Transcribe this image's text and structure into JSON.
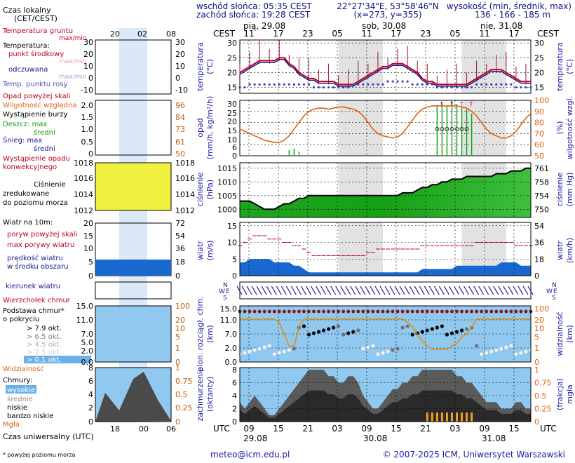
{
  "colors": {
    "title_blue": "#1a1aa8",
    "sun_text": "#101080",
    "temp_red": "#c00020",
    "orange": "#e06010",
    "navy": "#1a1a90",
    "green": "#10a010",
    "yellow": "#f0e030",
    "light_blue": "#90c8f0",
    "night_grey": "#e4e4e4"
  },
  "header": {
    "sunrise": "wschód słońca: 05:35 CEST",
    "sunset": "zachód słońca: 19:28 CEST",
    "coords": "22°27'34\"E, 53°58'46\"N",
    "grid": "(x=273, y=355)",
    "altitude_title": "wysokość (min, średnik, max)",
    "altitude_values": "136 - 166 - 185 m"
  },
  "top_axis": {
    "cest_label": "CEST",
    "days": [
      "pią, 29.08",
      "sob, 30.08",
      "nie, 31.08"
    ],
    "hours": [
      "11",
      "17",
      "23",
      "05",
      "11",
      "17",
      "23",
      "05",
      "11",
      "17"
    ]
  },
  "bottom_axis": {
    "utc_label": "UTC",
    "hours": [
      "09",
      "15",
      "21",
      "03",
      "09",
      "15",
      "21",
      "03",
      "09",
      "15"
    ],
    "dates": [
      "29.08",
      "30.08",
      "31.08"
    ]
  },
  "legend": {
    "time_local": "Czas lokalny\n(CET/CEST)",
    "time_local_hours": [
      "20",
      "02",
      "08"
    ],
    "time_utc_hours": [
      "18",
      "00",
      "06"
    ],
    "temp_ground": "Temperatura gruntu",
    "temp_ground_sub": "max/min",
    "temp_title": "Temperatura:",
    "temp_mid": "punkt środkowy",
    "temp_mid_sub": "max/min",
    "temp_feel": "odczuwana",
    "temp_feel_sub": "max/min",
    "temp_dew": "Temp. punktu rosy",
    "precip_above": "Opad powyżej skali",
    "humidity": "Wilgotność względna",
    "storm": "Wystąpienie burzy",
    "rain": "Deszcz: max",
    "rain_mean": "średni",
    "snow": "Śnieg: max",
    "snow_mean": "średni",
    "precip_occurrence": "Wystąpienie opadu\nkonwekcyjnego",
    "pressure": "Ciśnienie\nzredukowane\ndo poziomu morza",
    "wind_title": "Wiatr na 10m:",
    "gust_above": "poryw powyżej skali",
    "gust_max": "max porywy wiatru",
    "wind_mean": "prędkość wiatru\nw środku obszaru",
    "wind_dir": "kierunek wiatru",
    "wind_chill": "Wierzchołek chmur",
    "cloud_base": "Podstawa chmur*\no pokryciu",
    "cloud_levels": [
      "> 7.9 okt.",
      "> 6.5 okt.",
      "> 4.5 okt.",
      "> 2.5 okt.",
      "> 0.1 okt."
    ],
    "visibility": "Widzialność",
    "clouds": "Chmury:",
    "cloud_high": "wysokie",
    "cloud_mid": "średnie",
    "cloud_low": "niskie",
    "cloud_vlow": "bardzo niskie",
    "fog": "Mgła",
    "utc_title": "Czas uniwersalny (UTC)",
    "footnote": "* powyżej poziomu morza"
  },
  "legend_ticks": {
    "temp_left": [
      "30",
      "20",
      "10",
      "0",
      "-10"
    ],
    "temp_right": [
      "30",
      "20",
      "10",
      "0",
      "-10"
    ],
    "precip_left": [
      "2.0",
      "1.5",
      "1.0",
      "0.5",
      "0"
    ],
    "precip_right": [
      "96",
      "84",
      "73",
      "61",
      "50"
    ],
    "pressure_left": [
      "1018",
      "1016",
      "1014",
      "1012"
    ],
    "pressure_right": [
      "1018",
      "1016",
      "1014",
      "1012"
    ],
    "wind_left": [
      "20",
      "15",
      "10",
      "5",
      "0"
    ],
    "wind_right": [
      "72",
      "54",
      "36",
      "18",
      "0"
    ],
    "cloud_left": [
      "15.0",
      "11.0",
      "7.0",
      "5.0",
      "2.0",
      "0.0"
    ],
    "cloud_right": [
      "100",
      "20",
      "10",
      "5",
      "1",
      "0"
    ],
    "cover_left": [
      "8",
      "6",
      "4",
      "2",
      "0"
    ],
    "cover_right": [
      "1",
      "0.75",
      "0.5",
      "0.25",
      "0"
    ]
  },
  "panels": {
    "temperature": {
      "label_left": "temperatura\n(°C)",
      "label_right": "temperatura\n(°C)",
      "ticks_left": [
        "30",
        "25",
        "20",
        "15"
      ],
      "ticks_right": [
        "30",
        "25",
        "20",
        "15"
      ]
    },
    "precip": {
      "label_left": "opad\n(mm/h, kg/m²/h)",
      "label_right": "(%)\nwilgotność wzgl.",
      "ticks_left": [
        "30",
        "25",
        "20",
        "15",
        "10",
        "6",
        "0"
      ],
      "ticks_right": [
        "100",
        "90",
        "80",
        "70",
        "60",
        "50"
      ]
    },
    "pressure": {
      "label_left": "ciśnienie\n(hPa)",
      "label_right": "ciśnienie\n(mm Hg)",
      "ticks_left": [
        "1015",
        "1010",
        "1005",
        "1000"
      ],
      "ticks_right": [
        "761",
        "758",
        "754",
        "750"
      ]
    },
    "wind": {
      "label_left": "wiatr\n(m/s)",
      "label_right": "wiatr\n(km/h)",
      "ticks_left": [
        "15",
        "10",
        "5",
        "0"
      ],
      "ticks_right": [
        "54",
        "36",
        "18",
        "0"
      ]
    },
    "direction": {
      "compass": [
        "N",
        "W",
        "E",
        "S"
      ]
    },
    "clouds": {
      "label_left": "pion. rozciągł. chm.\n(km)",
      "label_right": "widzialność\n(km)",
      "ticks_left": [
        "15.0",
        "11.0",
        "7.0",
        "2.0",
        "0.0"
      ],
      "ticks_right": [
        "100",
        "20",
        "10",
        "5",
        "1",
        "0"
      ]
    },
    "cover": {
      "label_left": "zachmurzenie\n(oktanty)",
      "label_right": "(frakcja)\nmgła",
      "ticks_left": [
        "8",
        "6",
        "4",
        "2",
        "0"
      ],
      "ticks_right": [
        "1",
        "0.75",
        "0.5",
        "0.25",
        "0"
      ]
    }
  },
  "footer": {
    "email": "meteo@icm.edu.pl",
    "copyright": "© 2007-2025 ICM, Uniwersytet Warszawski"
  },
  "chart_data": {
    "type": "line",
    "hours_count": 60,
    "temperature_mid": [
      20,
      21,
      22,
      23,
      24,
      24,
      24,
      24,
      25,
      25,
      23,
      22,
      20,
      19,
      18,
      18,
      17,
      17,
      17,
      17,
      16,
      16,
      16,
      16,
      17,
      18,
      19,
      20,
      21,
      22,
      22,
      23,
      23,
      23,
      22,
      21,
      20,
      18,
      17,
      17,
      16,
      16,
      16,
      16,
      16,
      16,
      16,
      17,
      18,
      19,
      20,
      21,
      21,
      21,
      20,
      19,
      18,
      17,
      17,
      17
    ],
    "dew_point": [
      15,
      15,
      16,
      16,
      16,
      16,
      16,
      16,
      16,
      16,
      16,
      16,
      16,
      16,
      16,
      15,
      15,
      15,
      15,
      15,
      15,
      15,
      15,
      16,
      16,
      16,
      16,
      16,
      16,
      16,
      17,
      17,
      17,
      17,
      17,
      16,
      16,
      16,
      16,
      16,
      15,
      15,
      15,
      15,
      15,
      15,
      15,
      15,
      16,
      16,
      16,
      16,
      16,
      16,
      16,
      16,
      15,
      15,
      15,
      15
    ],
    "humidity": [
      74,
      72,
      70,
      68,
      66,
      64,
      63,
      62,
      62,
      64,
      68,
      74,
      80,
      86,
      90,
      92,
      93,
      93,
      92,
      93,
      94,
      94,
      93,
      92,
      90,
      86,
      80,
      74,
      70,
      68,
      67,
      66,
      67,
      70,
      76,
      82,
      88,
      92,
      94,
      95,
      95,
      95,
      95,
      95,
      95,
      94,
      93,
      90,
      86,
      80,
      74,
      70,
      68,
      66,
      66,
      68,
      72,
      78,
      84,
      88
    ],
    "pressure": [
      1003,
      1003,
      1003,
      1002,
      1001,
      1000,
      1000,
      1000,
      1001,
      1002,
      1002,
      1003,
      1004,
      1004,
      1005,
      1005,
      1005,
      1005,
      1005,
      1005,
      1005,
      1005,
      1005,
      1005,
      1005,
      1005,
      1005,
      1005,
      1005,
      1005,
      1005,
      1005,
      1005,
      1006,
      1006,
      1006,
      1007,
      1008,
      1008,
      1009,
      1009,
      1010,
      1010,
      1011,
      1011,
      1011,
      1012,
      1012,
      1012,
      1012,
      1012,
      1012,
      1013,
      1013,
      1013,
      1014,
      1014,
      1014,
      1015,
      1015
    ],
    "wind_speed": [
      4,
      4,
      5,
      5,
      5,
      5,
      5,
      4,
      4,
      4,
      4,
      3,
      3,
      2,
      1,
      1,
      1,
      1,
      1,
      1,
      1,
      1,
      1,
      1,
      1,
      1,
      1,
      1,
      1,
      1,
      1,
      1,
      1,
      1,
      1,
      1,
      1,
      2,
      2,
      2,
      2,
      2,
      2,
      2,
      3,
      3,
      3,
      3,
      3,
      3,
      3,
      3,
      3,
      4,
      4,
      4,
      4,
      3,
      3,
      3
    ],
    "wind_gust": [
      9,
      10,
      11,
      12,
      12,
      12,
      11,
      11,
      11,
      10,
      10,
      9,
      9,
      8,
      7,
      6,
      6,
      6,
      6,
      6,
      6,
      6,
      6,
      6,
      6,
      6,
      7,
      7,
      8,
      8,
      8,
      8,
      8,
      8,
      8,
      8,
      8,
      9,
      9,
      9,
      9,
      9,
      9,
      9,
      9,
      9,
      9,
      9,
      10,
      10,
      10,
      10,
      10,
      10,
      10,
      10,
      9,
      9,
      9,
      9
    ],
    "visibility": [
      40,
      40,
      40,
      40,
      40,
      40,
      40,
      40,
      30,
      10,
      3,
      3,
      20,
      40,
      40,
      40,
      40,
      40,
      40,
      40,
      40,
      40,
      40,
      40,
      40,
      40,
      40,
      40,
      40,
      40,
      40,
      40,
      40,
      40,
      30,
      20,
      10,
      5,
      3,
      2,
      2,
      2,
      2,
      3,
      4,
      8,
      10,
      20,
      40,
      40,
      40,
      40,
      40,
      40,
      40,
      40,
      40,
      40,
      40,
      40
    ],
    "cloud_cover": [
      3,
      2,
      3,
      4,
      3,
      2,
      1,
      1,
      2,
      3,
      4,
      5,
      6,
      7,
      8,
      8,
      8,
      8,
      7,
      7,
      6,
      6,
      7,
      7,
      6,
      4,
      3,
      2,
      2,
      3,
      4,
      5,
      5,
      6,
      6,
      7,
      7,
      8,
      8,
      8,
      8,
      8,
      8,
      8,
      7,
      7,
      6,
      6,
      5,
      4,
      3,
      3,
      3,
      2,
      2,
      2,
      3,
      3,
      2,
      2
    ]
  }
}
